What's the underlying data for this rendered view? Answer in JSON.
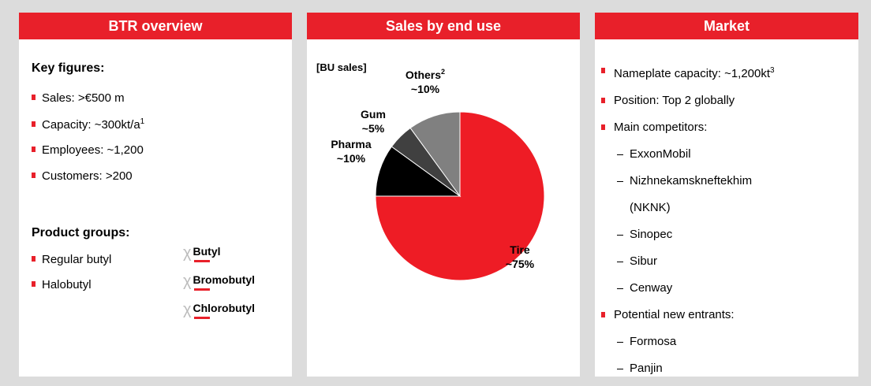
{
  "panels": [
    {
      "title": "BTR overview"
    },
    {
      "title": "Sales by end use",
      "subtitle": "[BU sales]"
    },
    {
      "title": "Market"
    }
  ],
  "overview": {
    "key_heading": "Key figures:",
    "key_items": [
      {
        "text": "Sales: >€500 m"
      },
      {
        "text": "Capacity: ~300kt/a",
        "sup": "1"
      },
      {
        "text": "Employees: ~1,200"
      },
      {
        "text": "Customers: >200"
      }
    ],
    "product_heading": "Product groups:",
    "product_items": [
      "Regular butyl",
      "Halobutyl"
    ],
    "logos": [
      "Butyl",
      "Bromobutyl",
      "Chlorobutyl"
    ]
  },
  "chart_data": {
    "type": "pie",
    "categories": [
      "Tire",
      "Pharma",
      "Gum",
      "Others"
    ],
    "superscripts": [
      null,
      null,
      null,
      "2"
    ],
    "values": [
      75,
      10,
      5,
      10
    ],
    "value_labels": [
      "~75%",
      "~10%",
      "~5%",
      "~10%"
    ],
    "colors": [
      "#ee1c25",
      "#000000",
      "#404040",
      "#808080"
    ]
  },
  "market": {
    "items": [
      {
        "kind": "bullet",
        "text": "Nameplate capacity: ~1,200kt",
        "sup": "3"
      },
      {
        "kind": "bullet",
        "text": "Position: Top 2 globally"
      },
      {
        "kind": "bullet",
        "text": "Main competitors:"
      },
      {
        "kind": "dash",
        "text": "ExxonMobil"
      },
      {
        "kind": "dash",
        "text": "Nizhnekamskneftekhim (NKNK)"
      },
      {
        "kind": "dash",
        "text": "Sinopec"
      },
      {
        "kind": "dash",
        "text": "Sibur"
      },
      {
        "kind": "dash",
        "text": "Cenway"
      },
      {
        "kind": "bullet",
        "text": "Potential new entrants:"
      },
      {
        "kind": "dash",
        "text": "Formosa"
      },
      {
        "kind": "dash",
        "text": "Panjin"
      }
    ]
  }
}
